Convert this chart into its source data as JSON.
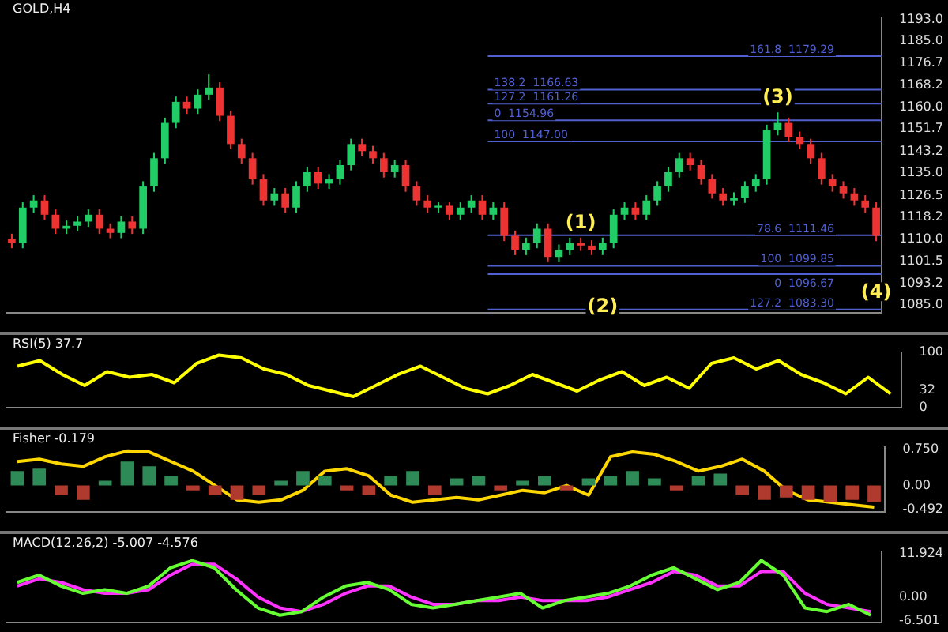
{
  "chart_data": [
    {
      "type": "candlestick",
      "title": "GOLD,H4",
      "tick_labels": "y",
      "grid": false,
      "categories": [
        null,
        null,
        null,
        null,
        null,
        null,
        null,
        null,
        null,
        null,
        null,
        null,
        null,
        null,
        null,
        null,
        null,
        null,
        null,
        null,
        null,
        null,
        null,
        null,
        null,
        null,
        null,
        null,
        null,
        null,
        null,
        null,
        null,
        null,
        null,
        null,
        null,
        null,
        null,
        null,
        null,
        null,
        null,
        null,
        null,
        null,
        null,
        null,
        null,
        null,
        null,
        null,
        null,
        null,
        null,
        null,
        null,
        null,
        null,
        null,
        null,
        null,
        null,
        null,
        null,
        null,
        null,
        null,
        null,
        null,
        null,
        null,
        null,
        null,
        null,
        null,
        null,
        null,
        null,
        null
      ],
      "ohlc": [
        [
          1110.0,
          1112.0,
          1106.5,
          1108.5
        ],
        [
          1108.5,
          1123.9,
          1106.5,
          1121.9
        ],
        [
          1121.9,
          1126.6,
          1119.9,
          1124.6
        ],
        [
          1124.6,
          1126.6,
          1117.2,
          1119.2
        ],
        [
          1119.2,
          1121.2,
          1111.9,
          1113.9
        ],
        [
          1113.9,
          1117.0,
          1111.9,
          1115.0
        ],
        [
          1115.0,
          1118.6,
          1113.0,
          1116.6
        ],
        [
          1116.6,
          1121.2,
          1114.6,
          1119.2
        ],
        [
          1119.2,
          1121.2,
          1111.9,
          1113.9
        ],
        [
          1113.9,
          1115.9,
          1110.3,
          1112.3
        ],
        [
          1112.3,
          1118.6,
          1110.3,
          1116.6
        ],
        [
          1116.6,
          1118.6,
          1111.9,
          1113.9
        ],
        [
          1113.9,
          1131.9,
          1111.9,
          1129.9
        ],
        [
          1129.9,
          1142.6,
          1127.9,
          1140.6
        ],
        [
          1140.6,
          1156.0,
          1138.6,
          1154.0
        ],
        [
          1154.0,
          1164.0,
          1152.0,
          1162.0
        ],
        [
          1162.0,
          1164.0,
          1157.4,
          1159.4
        ],
        [
          1159.4,
          1166.7,
          1157.4,
          1164.7
        ],
        [
          1164.7,
          1172.4,
          1162.7,
          1167.4
        ],
        [
          1167.4,
          1169.4,
          1154.7,
          1156.7
        ],
        [
          1156.7,
          1158.7,
          1144.0,
          1146.0
        ],
        [
          1146.0,
          1148.0,
          1138.6,
          1140.6
        ],
        [
          1140.6,
          1142.6,
          1130.6,
          1132.6
        ],
        [
          1132.6,
          1134.6,
          1122.6,
          1124.6
        ],
        [
          1124.6,
          1129.3,
          1122.6,
          1127.3
        ],
        [
          1127.3,
          1129.3,
          1119.9,
          1121.9
        ],
        [
          1121.9,
          1131.9,
          1119.9,
          1129.9
        ],
        [
          1129.9,
          1137.3,
          1127.9,
          1135.3
        ],
        [
          1135.3,
          1137.3,
          1129.0,
          1131.0
        ],
        [
          1131.0,
          1134.6,
          1129.0,
          1132.6
        ],
        [
          1132.6,
          1140.0,
          1130.6,
          1138.0
        ],
        [
          1138.0,
          1148.0,
          1136.0,
          1146.0
        ],
        [
          1146.0,
          1148.0,
          1141.3,
          1143.3
        ],
        [
          1143.3,
          1145.3,
          1138.6,
          1140.6
        ],
        [
          1140.6,
          1142.6,
          1133.3,
          1135.3
        ],
        [
          1135.3,
          1140.0,
          1133.3,
          1138.0
        ],
        [
          1138.0,
          1140.0,
          1127.9,
          1129.9
        ],
        [
          1129.9,
          1131.9,
          1122.6,
          1124.6
        ],
        [
          1124.6,
          1126.6,
          1119.9,
          1121.9
        ],
        [
          1121.9,
          1123.9,
          1119.9,
          1122.6
        ],
        [
          1122.6,
          1123.9,
          1117.2,
          1119.2
        ],
        [
          1119.2,
          1123.9,
          1117.2,
          1121.9
        ],
        [
          1121.9,
          1126.6,
          1119.9,
          1124.6
        ],
        [
          1124.6,
          1126.6,
          1117.2,
          1119.2
        ],
        [
          1119.2,
          1123.9,
          1117.2,
          1121.9
        ],
        [
          1121.9,
          1123.9,
          1109.2,
          1111.2
        ],
        [
          1111.2,
          1113.2,
          1103.9,
          1105.9
        ],
        [
          1105.9,
          1110.5,
          1103.9,
          1108.5
        ],
        [
          1108.5,
          1115.9,
          1106.5,
          1113.9
        ],
        [
          1113.9,
          1115.9,
          1101.2,
          1103.2
        ],
        [
          1103.2,
          1107.9,
          1101.2,
          1105.9
        ],
        [
          1105.9,
          1110.5,
          1103.9,
          1108.5
        ],
        [
          1108.5,
          1110.5,
          1105.5,
          1107.5
        ],
        [
          1107.5,
          1109.5,
          1103.9,
          1105.9
        ],
        [
          1105.9,
          1110.5,
          1103.9,
          1108.5
        ],
        [
          1108.5,
          1121.2,
          1106.5,
          1119.2
        ],
        [
          1119.2,
          1123.9,
          1117.2,
          1121.9
        ],
        [
          1121.9,
          1123.9,
          1117.2,
          1119.2
        ],
        [
          1119.2,
          1126.6,
          1117.2,
          1124.6
        ],
        [
          1124.6,
          1131.9,
          1122.6,
          1129.9
        ],
        [
          1129.9,
          1137.3,
          1127.9,
          1135.3
        ],
        [
          1135.3,
          1142.6,
          1133.3,
          1140.6
        ],
        [
          1140.6,
          1142.6,
          1136.0,
          1138.0
        ],
        [
          1138.0,
          1140.0,
          1130.6,
          1132.6
        ],
        [
          1132.6,
          1134.6,
          1125.3,
          1127.3
        ],
        [
          1127.3,
          1129.3,
          1122.6,
          1124.6
        ],
        [
          1124.6,
          1127.7,
          1122.6,
          1125.7
        ],
        [
          1125.7,
          1131.9,
          1123.7,
          1129.9
        ],
        [
          1129.9,
          1134.6,
          1127.9,
          1132.6
        ],
        [
          1132.6,
          1153.3,
          1130.6,
          1151.3
        ],
        [
          1151.3,
          1158.0,
          1149.3,
          1154.0
        ],
        [
          1154.0,
          1156.0,
          1146.7,
          1148.7
        ],
        [
          1148.7,
          1150.7,
          1144.0,
          1146.0
        ],
        [
          1146.0,
          1148.0,
          1138.6,
          1140.6
        ],
        [
          1140.6,
          1142.6,
          1130.6,
          1132.6
        ],
        [
          1132.6,
          1134.6,
          1127.9,
          1129.9
        ],
        [
          1129.9,
          1131.9,
          1125.3,
          1127.3
        ],
        [
          1127.3,
          1129.3,
          1122.6,
          1124.6
        ],
        [
          1124.6,
          1126.6,
          1119.9,
          1121.9
        ],
        [
          1121.9,
          1123.9,
          1109.2,
          1111.2
        ]
      ],
      "ylim": [
        1082,
        1194
      ],
      "yticks": [
        {
          "value": 1085,
          "label": "1085.0"
        },
        1093.2,
        1101.5,
        {
          "value": 1110,
          "label": "1110.0"
        },
        1118.2,
        1126.5,
        {
          "value": 1135,
          "label": "1135.0"
        },
        1143.2,
        1151.7,
        {
          "value": 1160,
          "label": "1160.0"
        },
        1168.2,
        1176.7,
        {
          "value": 1185,
          "label": "1185.0"
        },
        {
          "value": 1193,
          "label": "1193.0"
        }
      ],
      "ref_lines": [
        {
          "axis": "y",
          "value": 1179.29,
          "label": "161.8  1179.29",
          "color": "#5060d0"
        },
        {
          "axis": "y",
          "value": 1166.63,
          "label": "138.2  1166.63",
          "color": "#5060d0"
        },
        {
          "axis": "y",
          "value": 1161.26,
          "label": "127.2  1161.26",
          "color": "#5060d0"
        },
        {
          "axis": "y",
          "value": 1154.96,
          "label": "0  1154.96",
          "color": "#5060d0"
        },
        {
          "axis": "y",
          "value": 1147.0,
          "label": "100  1147.00",
          "color": "#5060d0"
        },
        {
          "axis": "y",
          "value": 1111.46,
          "label": "78.6  1111.46",
          "color": "#5060d0"
        },
        {
          "axis": "y",
          "value": 1099.85,
          "label": "100  1099.85",
          "color": "#5060d0"
        },
        {
          "axis": "y",
          "value": 1096.67,
          "label": "0  1096.67",
          "color": "#5060d0"
        },
        {
          "axis": "y",
          "value": 1083.3,
          "label": "127.2  1083.30",
          "color": "#5060d0"
        }
      ],
      "annotations": [
        "(1)",
        "(2)",
        "(3)",
        "(4)"
      ]
    },
    {
      "type": "line",
      "title": "RSI(5) 37.7",
      "tick_labels": "y",
      "categories": [
        null,
        null,
        null,
        null,
        null,
        null,
        null,
        null,
        null,
        null,
        null,
        null,
        null,
        null,
        null,
        null,
        null,
        null,
        null,
        null,
        null,
        null,
        null,
        null,
        null,
        null,
        null,
        null,
        null,
        null,
        null,
        null,
        null,
        null,
        null,
        null,
        null,
        null,
        null,
        null
      ],
      "series": [
        {
          "type": "line",
          "color": "#ffff00",
          "values": [
            75,
            85,
            60,
            40,
            65,
            55,
            60,
            45,
            80,
            95,
            90,
            70,
            60,
            40,
            30,
            20,
            40,
            60,
            75,
            55,
            35,
            25,
            40,
            60,
            45,
            30,
            50,
            65,
            40,
            55,
            35,
            80,
            90,
            70,
            85,
            60,
            45,
            25,
            55,
            25
          ]
        }
      ],
      "ylim": [
        0,
        100
      ],
      "yticks": [
        0,
        32,
        100
      ]
    },
    {
      "type": "line",
      "title": "Fisher -0.179",
      "tick_labels": "y",
      "categories": [
        null,
        null,
        null,
        null,
        null,
        null,
        null,
        null,
        null,
        null,
        null,
        null,
        null,
        null,
        null,
        null,
        null,
        null,
        null,
        null,
        null,
        null,
        null,
        null,
        null,
        null,
        null,
        null,
        null,
        null,
        null,
        null,
        null,
        null,
        null,
        null,
        null,
        null,
        null,
        null
      ],
      "series": [
        {
          "type": "bar",
          "color": "#2e8b57",
          "values": [
            0.3,
            0.35,
            null,
            null,
            0.1,
            0.5,
            0.4,
            0.2,
            null,
            null,
            null,
            null,
            0.1,
            0.3,
            0.2,
            null,
            null,
            0.2,
            0.3,
            null,
            0.15,
            0.2,
            null,
            0.1,
            0.2,
            null,
            0.15,
            0.2,
            0.3,
            0.15,
            null,
            0.2,
            0.25,
            null,
            null,
            null,
            null,
            null,
            null,
            null
          ]
        },
        {
          "type": "bar",
          "color": "#b03a2e",
          "values": [
            null,
            null,
            -0.2,
            -0.3,
            null,
            null,
            null,
            null,
            -0.1,
            -0.2,
            -0.3,
            -0.2,
            null,
            null,
            null,
            -0.1,
            -0.2,
            null,
            null,
            -0.2,
            null,
            null,
            -0.1,
            null,
            null,
            -0.1,
            null,
            null,
            null,
            null,
            -0.1,
            null,
            null,
            -0.2,
            -0.3,
            -0.25,
            -0.3,
            -0.35,
            -0.3,
            -0.35
          ]
        },
        {
          "type": "line",
          "color": "#ffd700",
          "values": [
            0.5,
            0.55,
            0.45,
            0.4,
            0.6,
            0.72,
            0.7,
            0.5,
            0.3,
            0.0,
            -0.3,
            -0.35,
            -0.3,
            -0.1,
            0.3,
            0.35,
            0.2,
            -0.2,
            -0.35,
            -0.3,
            -0.25,
            -0.3,
            -0.2,
            -0.1,
            -0.15,
            0.0,
            -0.2,
            0.6,
            0.7,
            0.65,
            0.5,
            0.3,
            0.4,
            0.55,
            0.3,
            -0.1,
            -0.3,
            -0.35,
            -0.4,
            -0.45
          ]
        }
      ],
      "ylim": [
        -0.55,
        0.8
      ],
      "yticks": [
        -0.492,
        {
          "value": 0,
          "label": "0.00"
        },
        {
          "value": 0.75,
          "label": "0.750"
        }
      ]
    },
    {
      "type": "line",
      "title": "MACD(12,26,2) -5.007 -4.576",
      "tick_labels": "y",
      "categories": [
        null,
        null,
        null,
        null,
        null,
        null,
        null,
        null,
        null,
        null,
        null,
        null,
        null,
        null,
        null,
        null,
        null,
        null,
        null,
        null,
        null,
        null,
        null,
        null,
        null,
        null,
        null,
        null,
        null,
        null,
        null,
        null,
        null,
        null,
        null,
        null,
        null,
        null,
        null,
        null
      ],
      "series": [
        {
          "type": "line",
          "color": "#66ff33",
          "values": [
            4,
            6,
            3,
            1,
            2,
            1,
            3,
            8,
            10,
            8,
            2,
            -3,
            -5,
            -4,
            0,
            3,
            4,
            2,
            -2,
            -3,
            -2,
            -1,
            0,
            1,
            -3,
            -1,
            0,
            1,
            3,
            6,
            8,
            5,
            2,
            4,
            10,
            6,
            -3,
            -4,
            -2,
            -5
          ]
        },
        {
          "type": "line",
          "color": "#ff33ff",
          "values": [
            3,
            5,
            4,
            2,
            1,
            1,
            2,
            6,
            9,
            9,
            5,
            0,
            -3,
            -4,
            -2,
            1,
            3,
            3,
            0,
            -2,
            -2,
            -1,
            -1,
            0,
            -1,
            -1,
            -1,
            0,
            2,
            4,
            7,
            6,
            3,
            3,
            7,
            7,
            1,
            -2,
            -3,
            -4
          ]
        }
      ],
      "ylim": [
        -7,
        12.5
      ],
      "yticks": [
        -6.501,
        {
          "value": 0,
          "label": "0.00"
        },
        11.924
      ]
    }
  ]
}
